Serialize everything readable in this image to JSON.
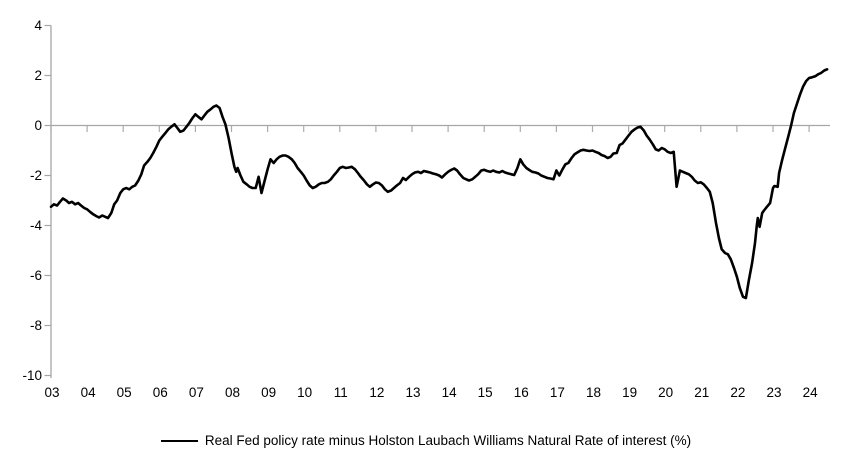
{
  "chart_data": {
    "type": "line",
    "title": "",
    "xlabel": "",
    "ylabel": "",
    "xlim": [
      2003,
      2024.6
    ],
    "ylim": [
      -10,
      4
    ],
    "y_ticks": [
      4,
      2,
      0,
      -2,
      -4,
      -6,
      -8,
      -10
    ],
    "x_tick_labels": [
      "03",
      "04",
      "05",
      "06",
      "07",
      "08",
      "09",
      "10",
      "11",
      "12",
      "13",
      "14",
      "15",
      "16",
      "17",
      "18",
      "19",
      "20",
      "21",
      "22",
      "23",
      "24"
    ],
    "grid": "horizontal zero axis line only, tick marks on axes",
    "legend": {
      "position": "bottom-center",
      "label": "Real Fed policy rate minus Holston Laubach Williams Natural Rate of interest (%)"
    },
    "colors": {
      "series_line": "#000000",
      "axis": "#A6A6A6",
      "tick": "#ABABAB",
      "text": "#000000",
      "background": "#FFFFFF"
    },
    "series": [
      {
        "name": "Real Fed policy rate minus Holston Laubach Williams Natural Rate of interest (%)",
        "color": "#000000",
        "points": [
          [
            2003.0,
            -3.25
          ],
          [
            2003.08,
            -3.15
          ],
          [
            2003.17,
            -3.2
          ],
          [
            2003.25,
            -3.05
          ],
          [
            2003.33,
            -2.92
          ],
          [
            2003.42,
            -3.0
          ],
          [
            2003.5,
            -3.1
          ],
          [
            2003.58,
            -3.05
          ],
          [
            2003.67,
            -3.15
          ],
          [
            2003.75,
            -3.1
          ],
          [
            2003.83,
            -3.2
          ],
          [
            2003.92,
            -3.3
          ],
          [
            2004.0,
            -3.35
          ],
          [
            2004.08,
            -3.45
          ],
          [
            2004.17,
            -3.55
          ],
          [
            2004.25,
            -3.62
          ],
          [
            2004.33,
            -3.68
          ],
          [
            2004.42,
            -3.6
          ],
          [
            2004.5,
            -3.65
          ],
          [
            2004.58,
            -3.7
          ],
          [
            2004.67,
            -3.5
          ],
          [
            2004.75,
            -3.15
          ],
          [
            2004.83,
            -3.0
          ],
          [
            2004.92,
            -2.7
          ],
          [
            2005.0,
            -2.55
          ],
          [
            2005.08,
            -2.5
          ],
          [
            2005.17,
            -2.55
          ],
          [
            2005.25,
            -2.45
          ],
          [
            2005.33,
            -2.4
          ],
          [
            2005.42,
            -2.2
          ],
          [
            2005.5,
            -1.95
          ],
          [
            2005.58,
            -1.6
          ],
          [
            2005.67,
            -1.45
          ],
          [
            2005.75,
            -1.3
          ],
          [
            2005.83,
            -1.1
          ],
          [
            2005.92,
            -0.85
          ],
          [
            2006.0,
            -0.6
          ],
          [
            2006.08,
            -0.45
          ],
          [
            2006.17,
            -0.3
          ],
          [
            2006.25,
            -0.15
          ],
          [
            2006.33,
            -0.05
          ],
          [
            2006.42,
            0.05
          ],
          [
            2006.5,
            -0.1
          ],
          [
            2006.58,
            -0.25
          ],
          [
            2006.67,
            -0.2
          ],
          [
            2006.75,
            -0.05
          ],
          [
            2006.83,
            0.1
          ],
          [
            2006.92,
            0.3
          ],
          [
            2007.0,
            0.45
          ],
          [
            2007.08,
            0.35
          ],
          [
            2007.17,
            0.25
          ],
          [
            2007.25,
            0.4
          ],
          [
            2007.33,
            0.55
          ],
          [
            2007.42,
            0.65
          ],
          [
            2007.5,
            0.75
          ],
          [
            2007.58,
            0.8
          ],
          [
            2007.67,
            0.7
          ],
          [
            2007.75,
            0.35
          ],
          [
            2007.83,
            0.05
          ],
          [
            2007.92,
            -0.5
          ],
          [
            2008.0,
            -1.1
          ],
          [
            2008.08,
            -1.65
          ],
          [
            2008.13,
            -1.85
          ],
          [
            2008.17,
            -1.7
          ],
          [
            2008.25,
            -2.0
          ],
          [
            2008.33,
            -2.25
          ],
          [
            2008.42,
            -2.35
          ],
          [
            2008.5,
            -2.45
          ],
          [
            2008.58,
            -2.5
          ],
          [
            2008.67,
            -2.5
          ],
          [
            2008.75,
            -2.05
          ],
          [
            2008.83,
            -2.7
          ],
          [
            2008.92,
            -2.2
          ],
          [
            2009.0,
            -1.75
          ],
          [
            2009.08,
            -1.35
          ],
          [
            2009.17,
            -1.5
          ],
          [
            2009.25,
            -1.35
          ],
          [
            2009.33,
            -1.25
          ],
          [
            2009.42,
            -1.2
          ],
          [
            2009.5,
            -1.2
          ],
          [
            2009.58,
            -1.25
          ],
          [
            2009.67,
            -1.35
          ],
          [
            2009.75,
            -1.5
          ],
          [
            2009.83,
            -1.7
          ],
          [
            2009.92,
            -1.85
          ],
          [
            2010.0,
            -2.0
          ],
          [
            2010.08,
            -2.2
          ],
          [
            2010.17,
            -2.4
          ],
          [
            2010.25,
            -2.5
          ],
          [
            2010.33,
            -2.45
          ],
          [
            2010.42,
            -2.35
          ],
          [
            2010.5,
            -2.3
          ],
          [
            2010.58,
            -2.3
          ],
          [
            2010.67,
            -2.25
          ],
          [
            2010.75,
            -2.15
          ],
          [
            2010.83,
            -2.0
          ],
          [
            2010.92,
            -1.85
          ],
          [
            2011.0,
            -1.7
          ],
          [
            2011.08,
            -1.65
          ],
          [
            2011.17,
            -1.7
          ],
          [
            2011.25,
            -1.68
          ],
          [
            2011.33,
            -1.65
          ],
          [
            2011.42,
            -1.75
          ],
          [
            2011.5,
            -1.9
          ],
          [
            2011.58,
            -2.05
          ],
          [
            2011.67,
            -2.2
          ],
          [
            2011.75,
            -2.35
          ],
          [
            2011.83,
            -2.45
          ],
          [
            2011.92,
            -2.35
          ],
          [
            2012.0,
            -2.28
          ],
          [
            2012.08,
            -2.3
          ],
          [
            2012.17,
            -2.4
          ],
          [
            2012.25,
            -2.55
          ],
          [
            2012.33,
            -2.65
          ],
          [
            2012.42,
            -2.6
          ],
          [
            2012.5,
            -2.5
          ],
          [
            2012.58,
            -2.4
          ],
          [
            2012.67,
            -2.3
          ],
          [
            2012.75,
            -2.1
          ],
          [
            2012.83,
            -2.18
          ],
          [
            2012.92,
            -2.05
          ],
          [
            2013.0,
            -1.95
          ],
          [
            2013.08,
            -1.88
          ],
          [
            2013.17,
            -1.85
          ],
          [
            2013.25,
            -1.9
          ],
          [
            2013.33,
            -1.82
          ],
          [
            2013.42,
            -1.85
          ],
          [
            2013.5,
            -1.88
          ],
          [
            2013.58,
            -1.92
          ],
          [
            2013.67,
            -1.95
          ],
          [
            2013.75,
            -2.0
          ],
          [
            2013.83,
            -2.08
          ],
          [
            2013.92,
            -1.95
          ],
          [
            2014.0,
            -1.85
          ],
          [
            2014.08,
            -1.78
          ],
          [
            2014.17,
            -1.72
          ],
          [
            2014.25,
            -1.8
          ],
          [
            2014.33,
            -1.95
          ],
          [
            2014.42,
            -2.1
          ],
          [
            2014.5,
            -2.15
          ],
          [
            2014.58,
            -2.2
          ],
          [
            2014.67,
            -2.15
          ],
          [
            2014.75,
            -2.05
          ],
          [
            2014.83,
            -1.95
          ],
          [
            2014.92,
            -1.8
          ],
          [
            2015.0,
            -1.77
          ],
          [
            2015.08,
            -1.82
          ],
          [
            2015.17,
            -1.85
          ],
          [
            2015.25,
            -1.8
          ],
          [
            2015.33,
            -1.85
          ],
          [
            2015.42,
            -1.88
          ],
          [
            2015.5,
            -1.82
          ],
          [
            2015.58,
            -1.88
          ],
          [
            2015.67,
            -1.92
          ],
          [
            2015.75,
            -1.95
          ],
          [
            2015.83,
            -1.98
          ],
          [
            2015.92,
            -1.7
          ],
          [
            2016.0,
            -1.35
          ],
          [
            2016.08,
            -1.55
          ],
          [
            2016.17,
            -1.7
          ],
          [
            2016.25,
            -1.78
          ],
          [
            2016.33,
            -1.85
          ],
          [
            2016.42,
            -1.88
          ],
          [
            2016.5,
            -1.92
          ],
          [
            2016.58,
            -2.0
          ],
          [
            2016.67,
            -2.05
          ],
          [
            2016.75,
            -2.1
          ],
          [
            2016.83,
            -2.12
          ],
          [
            2016.92,
            -2.15
          ],
          [
            2017.0,
            -1.8
          ],
          [
            2017.08,
            -2.0
          ],
          [
            2017.17,
            -1.75
          ],
          [
            2017.25,
            -1.55
          ],
          [
            2017.33,
            -1.5
          ],
          [
            2017.42,
            -1.3
          ],
          [
            2017.5,
            -1.15
          ],
          [
            2017.58,
            -1.08
          ],
          [
            2017.67,
            -1.0
          ],
          [
            2017.75,
            -0.97
          ],
          [
            2017.83,
            -1.0
          ],
          [
            2017.92,
            -1.02
          ],
          [
            2018.0,
            -1.0
          ],
          [
            2018.08,
            -1.05
          ],
          [
            2018.17,
            -1.1
          ],
          [
            2018.25,
            -1.18
          ],
          [
            2018.33,
            -1.22
          ],
          [
            2018.42,
            -1.3
          ],
          [
            2018.5,
            -1.25
          ],
          [
            2018.58,
            -1.12
          ],
          [
            2018.67,
            -1.1
          ],
          [
            2018.75,
            -0.78
          ],
          [
            2018.83,
            -0.72
          ],
          [
            2018.92,
            -0.55
          ],
          [
            2019.0,
            -0.4
          ],
          [
            2019.08,
            -0.25
          ],
          [
            2019.17,
            -0.15
          ],
          [
            2019.25,
            -0.08
          ],
          [
            2019.33,
            -0.05
          ],
          [
            2019.42,
            -0.2
          ],
          [
            2019.5,
            -0.4
          ],
          [
            2019.58,
            -0.55
          ],
          [
            2019.67,
            -0.75
          ],
          [
            2019.75,
            -0.95
          ],
          [
            2019.83,
            -1.0
          ],
          [
            2019.92,
            -0.9
          ],
          [
            2020.0,
            -0.95
          ],
          [
            2020.08,
            -1.05
          ],
          [
            2020.17,
            -1.1
          ],
          [
            2020.25,
            -1.05
          ],
          [
            2020.33,
            -2.45
          ],
          [
            2020.42,
            -1.8
          ],
          [
            2020.5,
            -1.85
          ],
          [
            2020.58,
            -1.9
          ],
          [
            2020.67,
            -1.95
          ],
          [
            2020.75,
            -2.05
          ],
          [
            2020.83,
            -2.2
          ],
          [
            2020.92,
            -2.3
          ],
          [
            2021.0,
            -2.27
          ],
          [
            2021.08,
            -2.35
          ],
          [
            2021.17,
            -2.5
          ],
          [
            2021.25,
            -2.65
          ],
          [
            2021.33,
            -3.1
          ],
          [
            2021.42,
            -3.9
          ],
          [
            2021.5,
            -4.5
          ],
          [
            2021.58,
            -4.95
          ],
          [
            2021.67,
            -5.1
          ],
          [
            2021.75,
            -5.15
          ],
          [
            2021.83,
            -5.35
          ],
          [
            2021.92,
            -5.7
          ],
          [
            2022.0,
            -6.05
          ],
          [
            2022.08,
            -6.5
          ],
          [
            2022.17,
            -6.85
          ],
          [
            2022.25,
            -6.9
          ],
          [
            2022.33,
            -6.2
          ],
          [
            2022.42,
            -5.5
          ],
          [
            2022.5,
            -4.7
          ],
          [
            2022.55,
            -4.0
          ],
          [
            2022.58,
            -3.7
          ],
          [
            2022.63,
            -4.05
          ],
          [
            2022.7,
            -3.5
          ],
          [
            2022.75,
            -3.4
          ],
          [
            2022.83,
            -3.25
          ],
          [
            2022.92,
            -3.1
          ],
          [
            2023.0,
            -2.5
          ],
          [
            2023.04,
            -2.42
          ],
          [
            2023.13,
            -2.45
          ],
          [
            2023.17,
            -1.9
          ],
          [
            2023.25,
            -1.4
          ],
          [
            2023.33,
            -0.95
          ],
          [
            2023.42,
            -0.45
          ],
          [
            2023.5,
            0.0
          ],
          [
            2023.58,
            0.5
          ],
          [
            2023.67,
            0.9
          ],
          [
            2023.75,
            1.25
          ],
          [
            2023.83,
            1.55
          ],
          [
            2023.92,
            1.78
          ],
          [
            2024.0,
            1.9
          ],
          [
            2024.08,
            1.93
          ],
          [
            2024.17,
            1.97
          ],
          [
            2024.25,
            2.05
          ],
          [
            2024.33,
            2.1
          ],
          [
            2024.42,
            2.2
          ],
          [
            2024.5,
            2.25
          ]
        ]
      }
    ]
  }
}
